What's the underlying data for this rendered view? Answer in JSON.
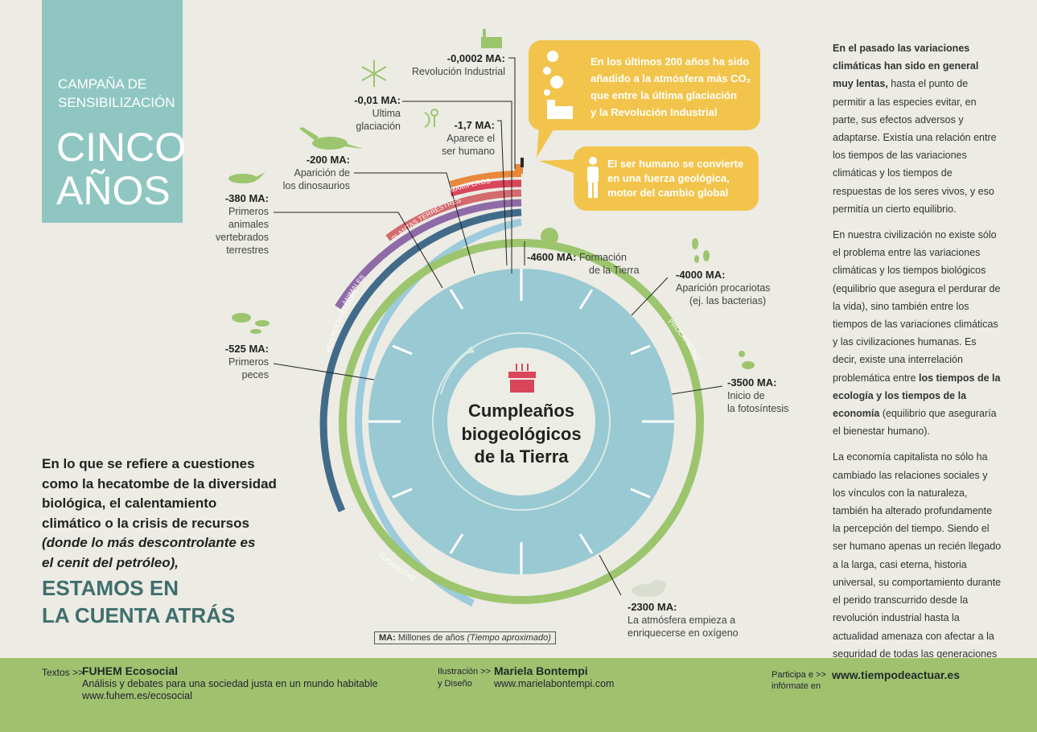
{
  "header": {
    "campaign_line1": "CAMPAÑA DE",
    "campaign_line2": "SENSIBILIZACIÓN",
    "title_line1": "CINCO",
    "title_line2": "AÑOS"
  },
  "quote": {
    "line1": "En lo que se refiere a cuestiones",
    "line2": "como la hecatombe de la diversidad",
    "line3": "biológica, el calentamiento",
    "line4": "climático o la crisis de recursos",
    "line5": "(donde lo más descontrolante es",
    "line6": "el cenit del petróleo),",
    "countdown1": "ESTAMOS EN",
    "countdown2": "LA CUENTA ATRÁS"
  },
  "center": {
    "line1": "Cumpleaños",
    "line2": "biogeológicos",
    "line3": "de la Tierra"
  },
  "milestones": [
    {
      "ma": "-0,0002 MA:",
      "desc1": "Revolución Industrial",
      "desc2": ""
    },
    {
      "ma": "-0,01 MA:",
      "desc1": "Ultima",
      "desc2": "glaciación"
    },
    {
      "ma": "-1,7 MA:",
      "desc1": "Aparece el",
      "desc2": "ser humano"
    },
    {
      "ma": "-200 MA:",
      "desc1": "Aparición de",
      "desc2": "los dinosaurios"
    },
    {
      "ma": "-380 MA:",
      "desc1": "Primeros",
      "desc2": "animales",
      "desc3": "vertebrados",
      "desc4": "terrestres"
    },
    {
      "ma": "-525 MA:",
      "desc1": "Primeros",
      "desc2": "peces"
    },
    {
      "ma": "-4600 MA:",
      "desc1": "Formación",
      "desc2": "de la Tierra"
    },
    {
      "ma": "-4000 MA:",
      "desc1": "Aparición procariotas",
      "desc2": "(ej. las bacterias)"
    },
    {
      "ma": "-3500 MA:",
      "desc1": "Inicio de",
      "desc2": "la fotosíntesis"
    },
    {
      "ma": "-2300 MA:",
      "desc1": "La atmósfera empieza a",
      "desc2": "enriquecerse en oxígeno"
    }
  ],
  "arcs": {
    "mamiferos": "MAMÍFEROS",
    "plantas": "PLANTAS TERRESTRES",
    "animales": "ANIMALES",
    "vida": "VIDA MULTICELULAR",
    "eucariotas": "EUCARIOTAS",
    "procariotas": "PROCARIOTAS"
  },
  "bubbles": {
    "b1_line1": "En los últimos 200 años ha sido",
    "b1_line2": "añadido a la atmósfera más CO₂",
    "b1_line3": "que entre la última glaciación",
    "b1_line4": "y la Revolución Industrial",
    "b2_line1": "El ser humano se convierte",
    "b2_line2": "en una fuerza geológica,",
    "b2_line3": "motor del cambio global"
  },
  "ma_note": {
    "abbr": "MA:",
    "text": "Millones de años",
    "italic": "(Tiempo aproximado)"
  },
  "right": {
    "p1_bold": "En el pasado las variaciones climáticas han sido en general muy lentas,",
    "p1_rest": " hasta el punto de permitir a las especies evitar, en parte, sus efectos adversos y adaptarse. Existía una relación entre los tiempos de las variaciones climáticas y los tiempos de respuestas de los seres vivos, y eso permitía un cierto equilibrio.",
    "p2_a": "En nuestra civilización no existe sólo el problema entre las variaciones climáticas y los tiempos biológicos (equilibrio que asegura el perdurar de la vida), sino también entre los tiempos de las variaciones climáticas y las civilizaciones humanas. Es decir, existe una interrelación problemática entre ",
    "p2_bold": "los tiempos de la ecología y los tiempos de la economía",
    "p2_c": " (equilibrio que aseguraría el bienestar humano).",
    "p3": "La economía capitalista no sólo ha cambiado las relaciones sociales y los vínculos con la naturaleza, también ha alterado profundamente la percepción del tiempo. Siendo el ser humano apenas un recién llegado a la larga, casi eterna, historia universal, su comportamiento durante el perido transcurrido desde la revolución industrial hasta la actualidad amenaza con afectar a la seguridad de todas las generaciones futuras."
  },
  "footer": {
    "texts_label": "Textos >>",
    "texts_org": "FUHEM Ecosocial",
    "texts_desc": "Análisis y debates para una sociedad justa en un mundo habitable",
    "texts_url": "www.fuhem.es/ecosocial",
    "illus_label1": "Ilustración >>",
    "illus_label2": "y Diseño",
    "illus_name": "Mariela Bontempi",
    "illus_url": "www.marielabontempi.com",
    "part_label1": "Participa e >>",
    "part_label2": "infórmate en",
    "part_url": "www.tiempodeactuar.es"
  },
  "colors": {
    "teal": "#8fc6c1",
    "disk": "#99c9d2",
    "green": "#9cc56d",
    "orange": "#e8883a",
    "red": "#d9455a",
    "pink": "#d36a6d",
    "purple": "#8e6aa7",
    "navy": "#426b8a",
    "lightblue": "#9bcbdc",
    "yellow": "#f2c44c"
  }
}
